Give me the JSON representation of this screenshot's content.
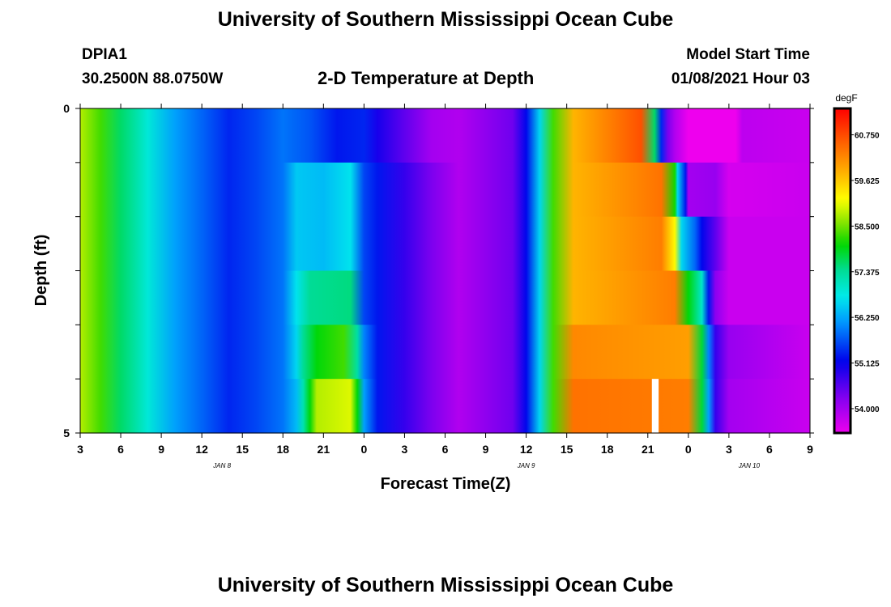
{
  "header": {
    "title": "University of Southern Mississippi Ocean Cube",
    "station_id": "DPIA1",
    "station_coords": "30.2500N 88.0750W",
    "plot_title": "2-D Temperature at Depth",
    "model_label": "Model Start Time",
    "model_time": "01/08/2021 Hour 03"
  },
  "footer": {
    "title": "University of Southern Mississippi Ocean Cube"
  },
  "chart_data": {
    "type": "heatmap",
    "title": "2-D Temperature at Depth",
    "xlabel": "Forecast Time(Z)",
    "ylabel": "Depth (ft)",
    "units": "degF",
    "x_start_hour_offset": 0,
    "x_end_hour_offset": 54,
    "x_ticks": [
      "3",
      "6",
      "9",
      "12",
      "15",
      "18",
      "21",
      "0",
      "3",
      "6",
      "9",
      "12",
      "15",
      "18",
      "21",
      "0",
      "3",
      "6",
      "9"
    ],
    "date_labels": [
      {
        "label": "JAN  8",
        "hour_offset": 10.5
      },
      {
        "label": "JAN  9",
        "hour_offset": 33
      },
      {
        "label": "JAN  10",
        "hour_offset": 49.5
      }
    ],
    "y_ticks": [
      "0",
      "5"
    ],
    "ylim": [
      0,
      5
    ],
    "depth_layers": [
      0,
      1,
      2,
      3,
      4,
      5
    ],
    "colorbar": {
      "label": "degF",
      "ticks": [
        "60.750",
        "59.625",
        "58.500",
        "57.375",
        "56.250",
        "55.125",
        "54.000"
      ],
      "tick_values": [
        60.75,
        59.625,
        58.5,
        57.375,
        56.25,
        55.125,
        54.0
      ],
      "range": [
        53.4,
        61.4
      ]
    },
    "profiles": [
      {
        "depth": 0,
        "temps": [
          [
            0,
            58.8
          ],
          [
            1.5,
            58.3
          ],
          [
            3,
            57.6
          ],
          [
            5,
            56.9
          ],
          [
            7,
            56.2
          ],
          [
            9,
            55.8
          ],
          [
            11,
            55.4
          ],
          [
            13,
            55.6
          ],
          [
            15,
            55.9
          ],
          [
            17,
            55.7
          ],
          [
            19,
            55.3
          ],
          [
            21,
            55.4
          ],
          [
            22,
            55.0
          ],
          [
            24,
            54.5
          ],
          [
            26,
            54.0
          ],
          [
            28,
            53.9
          ],
          [
            32,
            54.4
          ],
          [
            33,
            55.2
          ],
          [
            34,
            56.6
          ],
          [
            35,
            58.3
          ],
          [
            36.5,
            59.8
          ],
          [
            41.5,
            60.7
          ],
          [
            42.5,
            57.6
          ],
          [
            43,
            55.4
          ],
          [
            43.5,
            54.3
          ],
          [
            44,
            53.9
          ],
          [
            45,
            53.2
          ],
          [
            48.5,
            53.3
          ],
          [
            49,
            53.8
          ],
          [
            54,
            53.7
          ]
        ]
      },
      {
        "depth": 1,
        "temps": [
          [
            0,
            58.8
          ],
          [
            1.5,
            58.3
          ],
          [
            3,
            57.6
          ],
          [
            5,
            56.9
          ],
          [
            7,
            56.2
          ],
          [
            9,
            55.8
          ],
          [
            11,
            55.4
          ],
          [
            13,
            55.6
          ],
          [
            15,
            55.9
          ],
          [
            16,
            56.5
          ],
          [
            18,
            56.4
          ],
          [
            20,
            56.7
          ],
          [
            21,
            55.6
          ],
          [
            22,
            55.3
          ],
          [
            24,
            54.8
          ],
          [
            26,
            54.3
          ],
          [
            28,
            53.9
          ],
          [
            32,
            54.4
          ],
          [
            33,
            55.2
          ],
          [
            34,
            56.6
          ],
          [
            35,
            58.3
          ],
          [
            36.5,
            59.8
          ],
          [
            43,
            60.4
          ],
          [
            44,
            58.1
          ],
          [
            44.2,
            56.6
          ],
          [
            44.8,
            55.3
          ],
          [
            45,
            54.0
          ],
          [
            47,
            54.1
          ],
          [
            48,
            53.6
          ],
          [
            54,
            53.7
          ]
        ]
      },
      {
        "depth": 2,
        "temps": [
          [
            0,
            58.8
          ],
          [
            1.5,
            58.3
          ],
          [
            3,
            57.6
          ],
          [
            5,
            56.9
          ],
          [
            7,
            56.2
          ],
          [
            9,
            55.8
          ],
          [
            11,
            55.4
          ],
          [
            13,
            55.6
          ],
          [
            15,
            55.9
          ],
          [
            16,
            56.5
          ],
          [
            18,
            56.4
          ],
          [
            20,
            56.7
          ],
          [
            21,
            55.6
          ],
          [
            22,
            55.3
          ],
          [
            24,
            54.8
          ],
          [
            26,
            54.3
          ],
          [
            28,
            53.9
          ],
          [
            32,
            54.4
          ],
          [
            33,
            55.2
          ],
          [
            34,
            56.6
          ],
          [
            35,
            58.3
          ],
          [
            36.5,
            59.8
          ],
          [
            43,
            60.3
          ],
          [
            44,
            59.2
          ],
          [
            44.5,
            56.6
          ],
          [
            45.5,
            55.8
          ],
          [
            46,
            55.2
          ],
          [
            47,
            54.5
          ],
          [
            48,
            53.7
          ],
          [
            54,
            53.7
          ]
        ]
      },
      {
        "depth": 3,
        "temps": [
          [
            0,
            58.8
          ],
          [
            1.5,
            58.3
          ],
          [
            3,
            57.6
          ],
          [
            5,
            56.9
          ],
          [
            7,
            56.2
          ],
          [
            9,
            55.8
          ],
          [
            11,
            55.4
          ],
          [
            13,
            55.6
          ],
          [
            15,
            55.9
          ],
          [
            16,
            56.7
          ],
          [
            17,
            57.4
          ],
          [
            20,
            57.5
          ],
          [
            21,
            55.6
          ],
          [
            22,
            55.3
          ],
          [
            24,
            54.8
          ],
          [
            26,
            54.3
          ],
          [
            28,
            53.9
          ],
          [
            32,
            54.4
          ],
          [
            33,
            55.2
          ],
          [
            34,
            56.6
          ],
          [
            35,
            58.3
          ],
          [
            36.5,
            59.8
          ],
          [
            44,
            60.3
          ],
          [
            45,
            58.0
          ],
          [
            46,
            57.0
          ],
          [
            46.5,
            55.3
          ],
          [
            47,
            54.2
          ],
          [
            48,
            53.7
          ],
          [
            54,
            53.7
          ]
        ]
      },
      {
        "depth": 4,
        "temps": [
          [
            0,
            58.8
          ],
          [
            1.5,
            58.3
          ],
          [
            3,
            57.6
          ],
          [
            5,
            56.9
          ],
          [
            7,
            56.2
          ],
          [
            9,
            55.8
          ],
          [
            11,
            55.4
          ],
          [
            13,
            55.6
          ],
          [
            15,
            55.9
          ],
          [
            16,
            56.6
          ],
          [
            16.5,
            57.4
          ],
          [
            17.5,
            58.0
          ],
          [
            19.5,
            58.3
          ],
          [
            20.5,
            57.3
          ],
          [
            21,
            56.0
          ],
          [
            22,
            55.3
          ],
          [
            24,
            54.8
          ],
          [
            26,
            54.3
          ],
          [
            28,
            53.9
          ],
          [
            32,
            54.4
          ],
          [
            33,
            55.2
          ],
          [
            34,
            56.6
          ],
          [
            35,
            58.3
          ],
          [
            36.5,
            60.2
          ],
          [
            45,
            60.0
          ],
          [
            46,
            57.8
          ],
          [
            46.5,
            56.0
          ],
          [
            47,
            54.8
          ],
          [
            48,
            54.1
          ],
          [
            54,
            53.7
          ]
        ]
      },
      {
        "depth": 5,
        "temps": [
          [
            0,
            58.8
          ],
          [
            1.5,
            58.3
          ],
          [
            3,
            57.6
          ],
          [
            5,
            56.9
          ],
          [
            7,
            56.2
          ],
          [
            9,
            55.8
          ],
          [
            11,
            55.4
          ],
          [
            13,
            55.6
          ],
          [
            15,
            55.9
          ],
          [
            16,
            56.4
          ],
          [
            16.5,
            57.2
          ],
          [
            17,
            58.0
          ],
          [
            17.5,
            58.8
          ],
          [
            20,
            59.0
          ],
          [
            20.5,
            58.0
          ],
          [
            21,
            56.2
          ],
          [
            22,
            55.3
          ],
          [
            24,
            54.8
          ],
          [
            26,
            54.3
          ],
          [
            28,
            53.9
          ],
          [
            32,
            54.4
          ],
          [
            33,
            55.2
          ],
          [
            34,
            56.6
          ],
          [
            35,
            58.3
          ],
          [
            36.5,
            60.4
          ],
          [
            45,
            60.3
          ],
          [
            46,
            57.8
          ],
          [
            46.5,
            56.2
          ],
          [
            47,
            54.8
          ],
          [
            48,
            54.0
          ],
          [
            54,
            53.7
          ]
        ]
      }
    ],
    "missing_data": [
      {
        "hour_start": 42.3,
        "hour_end": 42.8,
        "depth": 5
      }
    ]
  }
}
